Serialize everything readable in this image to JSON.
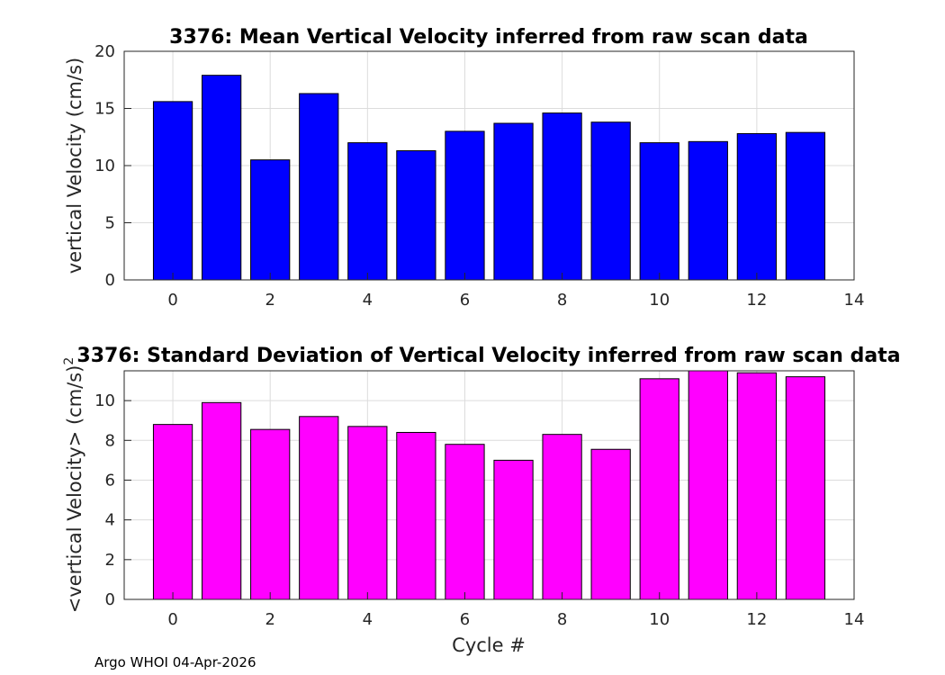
{
  "chart_data": [
    {
      "type": "bar",
      "title": "3376: Mean Vertical Velocity inferred from raw scan data",
      "xlabel": "",
      "ylabel": "vertical Velocity (cm/s)",
      "x": [
        0,
        1,
        2,
        3,
        4,
        5,
        6,
        7,
        8,
        9,
        10,
        11,
        12,
        13
      ],
      "values": [
        15.6,
        17.9,
        10.5,
        16.3,
        12.0,
        11.3,
        13.0,
        13.7,
        14.6,
        13.8,
        12.0,
        12.1,
        12.8,
        12.9
      ],
      "xlim": [
        -1,
        14
      ],
      "ylim": [
        0,
        20
      ],
      "xticks": [
        "0",
        "2",
        "4",
        "6",
        "8",
        "10",
        "12",
        "14"
      ],
      "yticks": [
        "0",
        "5",
        "10",
        "15",
        "20"
      ],
      "bar_color": "#0000ff",
      "grid": true
    },
    {
      "type": "bar",
      "title": "3376: Standard Deviation of Vertical Velocity inferred from raw scan data",
      "xlabel": "Cycle #",
      "ylabel": "<vertical Velocity> (cm/s)",
      "ylabel_superscript": "2",
      "x": [
        0,
        1,
        2,
        3,
        4,
        5,
        6,
        7,
        8,
        9,
        10,
        11,
        12,
        13
      ],
      "values": [
        8.8,
        9.9,
        8.55,
        9.2,
        8.7,
        8.4,
        7.8,
        7.0,
        8.3,
        7.55,
        11.1,
        11.6,
        11.4,
        11.2
      ],
      "xlim": [
        -1,
        14
      ],
      "ylim": [
        0,
        11.5
      ],
      "xticks": [
        "0",
        "2",
        "4",
        "6",
        "8",
        "10",
        "12",
        "14"
      ],
      "yticks": [
        "0",
        "2",
        "4",
        "6",
        "8",
        "10"
      ],
      "bar_color": "#ff00ff",
      "grid": true
    }
  ],
  "footer": {
    "text": "Argo WHOI 04-Apr-2026"
  }
}
